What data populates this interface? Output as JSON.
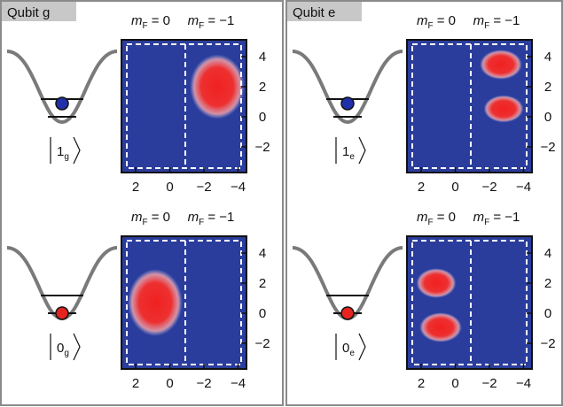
{
  "panels": [
    {
      "title": "Qubit g",
      "plots": [
        {
          "columns": [
            {
              "symbol": "m",
              "subscript": "F",
              "rest": " = 0"
            },
            {
              "symbol": "m",
              "subscript": "F",
              "rest": " = −1"
            }
          ],
          "state": {
            "number": "1",
            "subscript": "g"
          },
          "x_ticks": [
            "2",
            "0",
            "−2",
            "−4"
          ],
          "y_ticks": [
            "4",
            "2",
            "0",
            "−2"
          ]
        },
        {
          "columns": [
            {
              "symbol": "m",
              "subscript": "F",
              "rest": " = 0"
            },
            {
              "symbol": "m",
              "subscript": "F",
              "rest": " = −1"
            }
          ],
          "state": {
            "number": "0",
            "subscript": "g"
          },
          "x_ticks": [
            "2",
            "0",
            "−2",
            "−4"
          ],
          "y_ticks": [
            "4",
            "2",
            "0",
            "−2"
          ]
        }
      ]
    },
    {
      "title": "Qubit e",
      "plots": [
        {
          "columns": [
            {
              "symbol": "m",
              "subscript": "F",
              "rest": " = 0"
            },
            {
              "symbol": "m",
              "subscript": "F",
              "rest": " = −1"
            }
          ],
          "state": {
            "number": "1",
            "subscript": "e"
          },
          "x_ticks": [
            "2",
            "0",
            "−2",
            "−4"
          ],
          "y_ticks": [
            "4",
            "2",
            "0",
            "−2"
          ]
        },
        {
          "columns": [
            {
              "symbol": "m",
              "subscript": "F",
              "rest": " = 0"
            },
            {
              "symbol": "m",
              "subscript": "F",
              "rest": " = −1"
            }
          ],
          "state": {
            "number": "0",
            "subscript": "e"
          },
          "x_ticks": [
            "2",
            "0",
            "−2",
            "−4"
          ],
          "y_ticks": [
            "4",
            "2",
            "0",
            "−2"
          ]
        }
      ]
    }
  ]
}
